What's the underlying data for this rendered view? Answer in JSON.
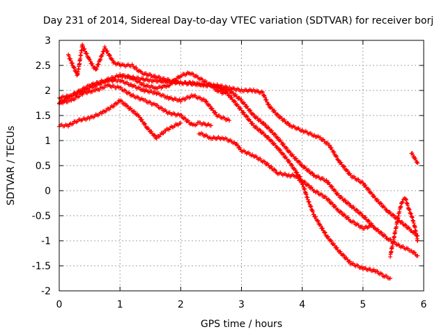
{
  "chart_data": {
    "type": "scatter",
    "title": "Day 231 of 2014, Sidereal Day-to-day VTEC variation (SDTVAR) for receiver borj",
    "xlabel": "GPS time / hours",
    "ylabel": "SDTVAR / TECUs",
    "xlim": [
      0,
      6
    ],
    "ylim": [
      -2,
      3
    ],
    "xticks": [
      0,
      1,
      2,
      3,
      4,
      5,
      6
    ],
    "yticks": [
      -2,
      -1.5,
      -1,
      -0.5,
      0,
      0.5,
      1,
      1.5,
      2,
      2.5,
      3
    ],
    "xtick_labels": [
      "0",
      "1",
      "2",
      "3",
      "4",
      "5",
      "6"
    ],
    "ytick_labels": [
      "-2",
      "-1.5",
      "-1",
      "-0.5",
      "0",
      "0.5",
      "1",
      "1.5",
      "2",
      "2.5",
      "3"
    ],
    "grid": true,
    "marker": "+",
    "color": "#ff0000",
    "series": [
      {
        "name": "s1",
        "points": [
          [
            0.0,
            1.85
          ],
          [
            0.2,
            1.9
          ],
          [
            0.35,
            2.0
          ],
          [
            0.5,
            2.1
          ],
          [
            0.75,
            2.2
          ],
          [
            1.0,
            2.3
          ],
          [
            1.2,
            2.25
          ],
          [
            1.4,
            2.1
          ],
          [
            1.6,
            2.05
          ],
          [
            1.8,
            2.1
          ],
          [
            2.0,
            2.3
          ],
          [
            2.15,
            2.35
          ],
          [
            2.3,
            2.25
          ],
          [
            2.5,
            2.1
          ],
          [
            2.6,
            2.0
          ],
          [
            2.7,
            1.95
          ]
        ]
      },
      {
        "name": "s2",
        "points": [
          [
            0.0,
            1.75
          ],
          [
            0.2,
            1.9
          ],
          [
            0.4,
            2.0
          ],
          [
            0.6,
            2.1
          ],
          [
            0.8,
            2.2
          ],
          [
            1.0,
            2.2
          ],
          [
            1.2,
            2.1
          ],
          [
            1.4,
            2.0
          ],
          [
            1.6,
            1.95
          ],
          [
            1.8,
            1.85
          ],
          [
            2.0,
            1.8
          ],
          [
            2.2,
            1.9
          ],
          [
            2.4,
            1.8
          ],
          [
            2.6,
            1.5
          ],
          [
            2.8,
            1.4
          ]
        ]
      },
      {
        "name": "s3",
        "points": [
          [
            0.0,
            1.3
          ],
          [
            0.15,
            1.3
          ],
          [
            0.3,
            1.4
          ],
          [
            0.5,
            1.45
          ],
          [
            0.7,
            1.55
          ],
          [
            0.9,
            1.7
          ],
          [
            1.0,
            1.8
          ],
          [
            1.1,
            1.7
          ],
          [
            1.3,
            1.5
          ],
          [
            1.45,
            1.25
          ],
          [
            1.6,
            1.05
          ],
          [
            1.75,
            1.2
          ],
          [
            1.9,
            1.3
          ],
          [
            2.0,
            1.35
          ]
        ]
      },
      {
        "name": "s4",
        "points": [
          [
            0.0,
            1.75
          ],
          [
            0.2,
            1.8
          ],
          [
            0.4,
            1.95
          ],
          [
            0.6,
            2.0
          ],
          [
            0.8,
            2.1
          ],
          [
            1.0,
            2.05
          ],
          [
            1.2,
            1.9
          ],
          [
            1.4,
            1.8
          ],
          [
            1.6,
            1.7
          ],
          [
            1.8,
            1.55
          ],
          [
            2.0,
            1.5
          ],
          [
            2.2,
            1.3
          ],
          [
            2.3,
            1.35
          ],
          [
            2.5,
            1.3
          ]
        ]
      },
      {
        "name": "s5",
        "points": [
          [
            0.15,
            2.7
          ],
          [
            0.3,
            2.3
          ],
          [
            0.38,
            2.9
          ],
          [
            0.5,
            2.6
          ],
          [
            0.6,
            2.4
          ],
          [
            0.75,
            2.85
          ],
          [
            0.9,
            2.55
          ],
          [
            1.05,
            2.5
          ],
          [
            1.2,
            2.5
          ],
          [
            1.35,
            2.35
          ],
          [
            1.5,
            2.3
          ],
          [
            1.65,
            2.25
          ],
          [
            1.8,
            2.2
          ],
          [
            2.0,
            2.15
          ],
          [
            2.2,
            2.15
          ],
          [
            2.4,
            2.1
          ],
          [
            2.6,
            2.1
          ],
          [
            2.8,
            2.05
          ],
          [
            3.0,
            2.0
          ],
          [
            3.2,
            2.0
          ],
          [
            3.35,
            1.95
          ],
          [
            3.45,
            1.7
          ],
          [
            3.6,
            1.5
          ],
          [
            3.8,
            1.3
          ],
          [
            4.0,
            1.2
          ],
          [
            4.2,
            1.1
          ],
          [
            4.3,
            1.05
          ],
          [
            4.45,
            0.9
          ],
          [
            4.6,
            0.6
          ],
          [
            4.8,
            0.3
          ],
          [
            5.0,
            0.15
          ],
          [
            5.2,
            -0.15
          ],
          [
            5.4,
            -0.4
          ],
          [
            5.6,
            -0.6
          ],
          [
            5.8,
            -0.8
          ],
          [
            5.9,
            -0.9
          ]
        ]
      },
      {
        "name": "s6",
        "points": [
          [
            1.0,
            2.3
          ],
          [
            1.5,
            2.2
          ],
          [
            2.0,
            2.15
          ],
          [
            2.5,
            2.1
          ],
          [
            2.8,
            2.0
          ],
          [
            3.0,
            1.8
          ],
          [
            3.2,
            1.5
          ],
          [
            3.4,
            1.3
          ],
          [
            3.6,
            1.05
          ],
          [
            3.8,
            0.75
          ],
          [
            4.0,
            0.5
          ],
          [
            4.2,
            0.3
          ],
          [
            4.4,
            0.2
          ],
          [
            4.6,
            -0.1
          ],
          [
            4.8,
            -0.3
          ],
          [
            5.0,
            -0.5
          ],
          [
            5.2,
            -0.75
          ],
          [
            5.4,
            -0.95
          ],
          [
            5.6,
            -1.1
          ],
          [
            5.8,
            -1.2
          ],
          [
            5.9,
            -1.3
          ]
        ]
      },
      {
        "name": "s7",
        "points": [
          [
            2.6,
            2.1
          ],
          [
            2.8,
            1.9
          ],
          [
            3.0,
            1.6
          ],
          [
            3.2,
            1.3
          ],
          [
            3.4,
            1.1
          ],
          [
            3.6,
            0.85
          ],
          [
            3.8,
            0.55
          ],
          [
            4.0,
            0.2
          ],
          [
            4.2,
            0.0
          ],
          [
            4.4,
            -0.15
          ],
          [
            4.6,
            -0.4
          ],
          [
            4.8,
            -0.6
          ],
          [
            5.0,
            -0.75
          ],
          [
            5.15,
            -0.7
          ]
        ]
      },
      {
        "name": "s8",
        "points": [
          [
            2.3,
            1.15
          ],
          [
            2.5,
            1.05
          ],
          [
            2.7,
            1.05
          ],
          [
            2.9,
            0.95
          ],
          [
            3.0,
            0.8
          ],
          [
            3.2,
            0.7
          ],
          [
            3.4,
            0.55
          ],
          [
            3.6,
            0.35
          ],
          [
            3.8,
            0.3
          ],
          [
            3.9,
            0.3
          ],
          [
            4.0,
            0.15
          ],
          [
            4.1,
            -0.2
          ],
          [
            4.2,
            -0.5
          ],
          [
            4.4,
            -0.9
          ],
          [
            4.6,
            -1.2
          ],
          [
            4.8,
            -1.45
          ],
          [
            5.0,
            -1.55
          ],
          [
            5.2,
            -1.6
          ],
          [
            5.35,
            -1.7
          ],
          [
            5.45,
            -1.75
          ]
        ]
      },
      {
        "name": "s9",
        "points": [
          [
            5.45,
            -1.3
          ],
          [
            5.5,
            -1.0
          ],
          [
            5.55,
            -0.7
          ],
          [
            5.6,
            -0.4
          ],
          [
            5.65,
            -0.2
          ],
          [
            5.7,
            -0.15
          ],
          [
            5.75,
            -0.35
          ],
          [
            5.8,
            -0.5
          ],
          [
            5.85,
            -0.7
          ],
          [
            5.9,
            -1.0
          ]
        ]
      },
      {
        "name": "s10",
        "points": [
          [
            5.8,
            0.75
          ],
          [
            5.85,
            0.65
          ],
          [
            5.9,
            0.55
          ]
        ]
      }
    ]
  }
}
